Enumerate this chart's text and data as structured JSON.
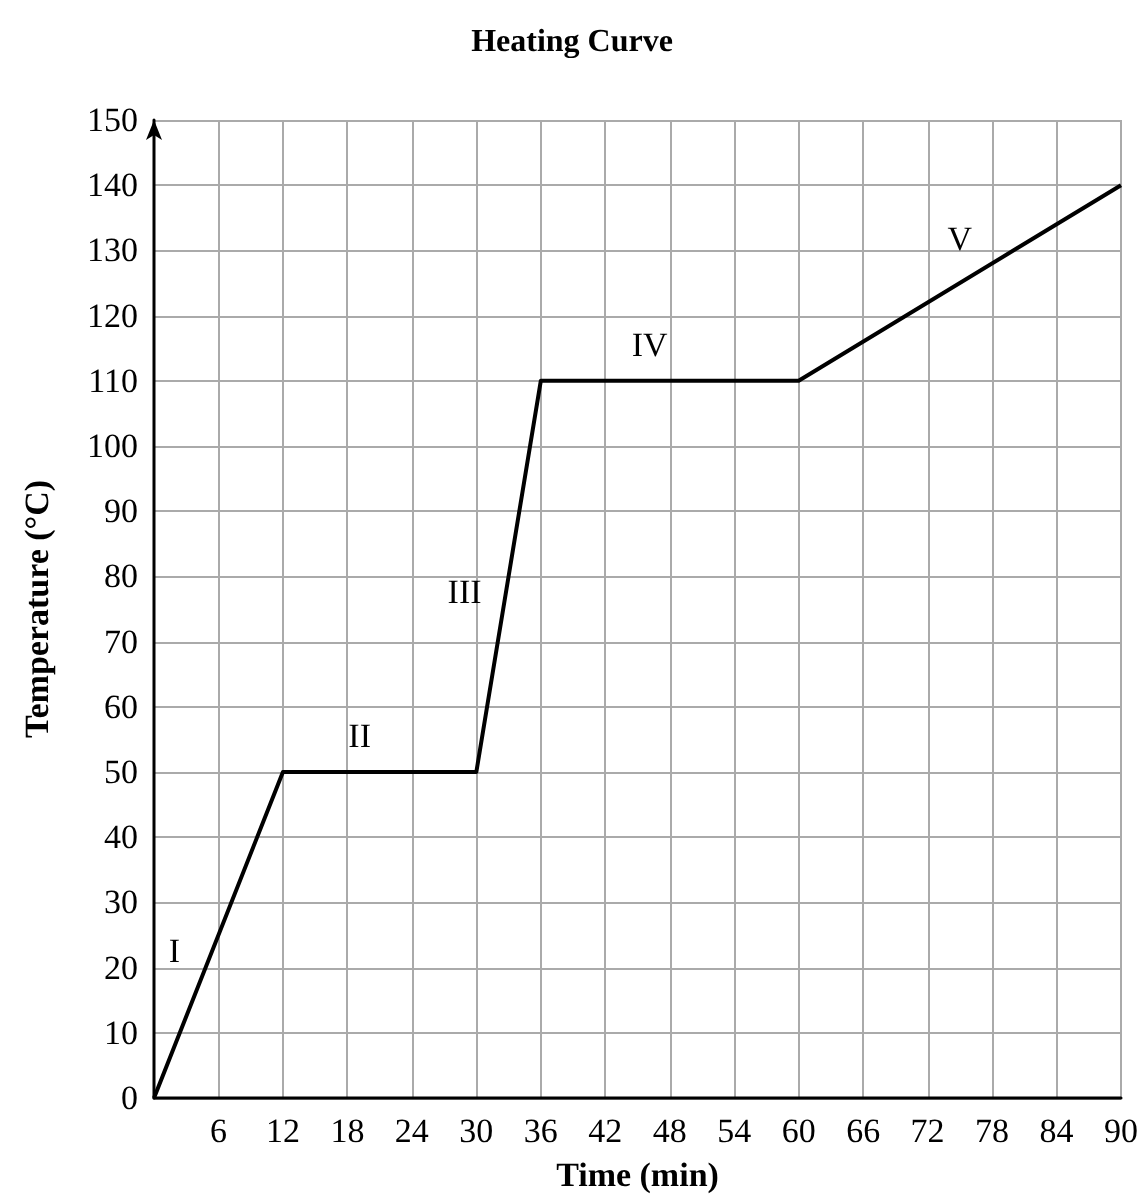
{
  "chart_data": {
    "type": "line",
    "title": "Heating Curve",
    "xlabel": "Time (min)",
    "ylabel": "Temperature (°C)",
    "x": [
      0,
      12,
      30,
      36,
      60,
      90
    ],
    "values": [
      0,
      50,
      50,
      110,
      110,
      140
    ],
    "color": "#000000",
    "xlim": [
      0,
      90
    ],
    "xticks": [
      6,
      12,
      18,
      24,
      30,
      36,
      42,
      48,
      54,
      60,
      66,
      72,
      78,
      84,
      90
    ],
    "ylim": [
      0,
      150
    ],
    "yticks": [
      0,
      10,
      20,
      30,
      40,
      50,
      60,
      70,
      80,
      90,
      100,
      110,
      120,
      130,
      140,
      150
    ],
    "grid": true,
    "marker": "none",
    "line_style": "solid",
    "annotations": [
      "I",
      "II",
      "III",
      "IV",
      "V"
    ]
  }
}
